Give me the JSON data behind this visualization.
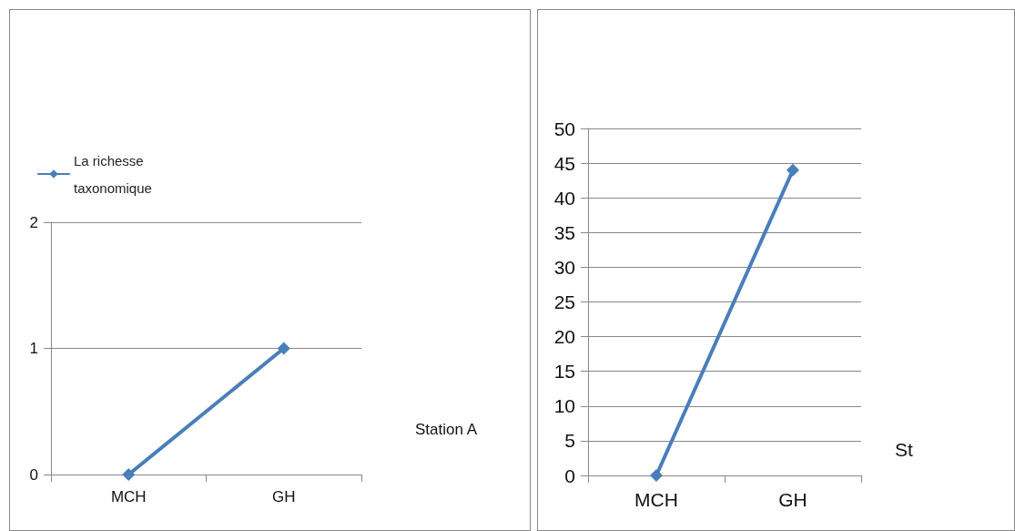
{
  "chart_data": [
    {
      "type": "line",
      "categories": [
        "MCH",
        "GH"
      ],
      "series": [
        {
          "name": "La richesse taxonomique",
          "color": "#4a7ebb",
          "values": [
            0,
            1
          ]
        }
      ],
      "ylim": [
        0,
        2
      ],
      "yticks": [
        0,
        1,
        2
      ],
      "grid": "y",
      "legend": "top left",
      "marker": "diamond",
      "annotations": [
        "Station A"
      ]
    },
    {
      "type": "line",
      "categories": [
        "MCH",
        "GH"
      ],
      "series": [
        {
          "color": "#4a7ebb",
          "values": [
            0,
            44
          ]
        }
      ],
      "ylim": [
        0,
        50
      ],
      "yticks": [
        0,
        5,
        10,
        15,
        20,
        25,
        30,
        35,
        40,
        45,
        50
      ],
      "grid": "y",
      "legend": false,
      "marker": "diamond",
      "annotations": [
        "St"
      ]
    }
  ]
}
